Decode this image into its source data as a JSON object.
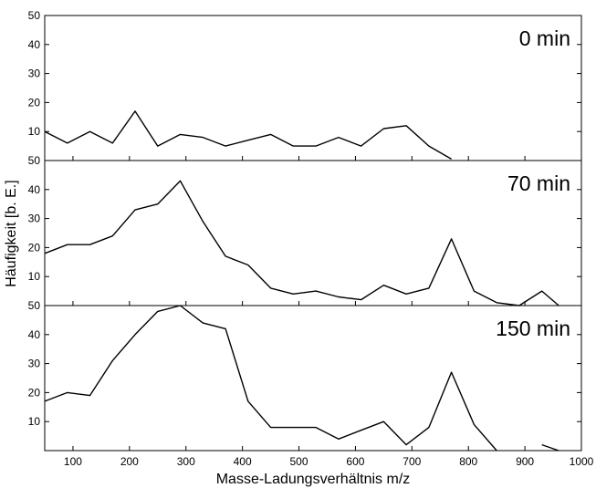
{
  "chart_data": {
    "type": "line",
    "xlabel": "Masse-Ladungsverhältnis m/z",
    "ylabel": "Häufigkeit [b. E.]",
    "xlim": [
      50,
      1000
    ],
    "ylim": [
      0,
      50
    ],
    "x_ticks": [
      100,
      200,
      300,
      400,
      500,
      600,
      700,
      800,
      900,
      1000
    ],
    "y_ticks": [
      10,
      20,
      30,
      40,
      50
    ],
    "grid": false,
    "x": [
      50,
      90,
      130,
      170,
      210,
      250,
      290,
      330,
      370,
      410,
      450,
      490,
      530,
      570,
      610,
      650,
      690,
      730,
      770,
      810,
      850,
      890,
      930,
      960
    ],
    "panels": [
      {
        "label": "0 min",
        "values": [
          10,
          6,
          10,
          6,
          17,
          5,
          9,
          8,
          5,
          7,
          9,
          5,
          5,
          8,
          5,
          11,
          12,
          5,
          0.5,
          null,
          null,
          null,
          null,
          null
        ]
      },
      {
        "label": "70 min",
        "values": [
          18,
          21,
          21,
          24,
          33,
          35,
          43,
          29,
          17,
          14,
          6,
          4,
          5,
          3,
          2,
          7,
          4,
          6,
          23,
          5,
          1,
          0,
          5,
          0
        ]
      },
      {
        "label": "150 min",
        "values": [
          17,
          20,
          19,
          31,
          40,
          48,
          50,
          44,
          42,
          17,
          8,
          8,
          8,
          4,
          7,
          10,
          2,
          8,
          27,
          9,
          0,
          null,
          2,
          0
        ]
      }
    ]
  }
}
